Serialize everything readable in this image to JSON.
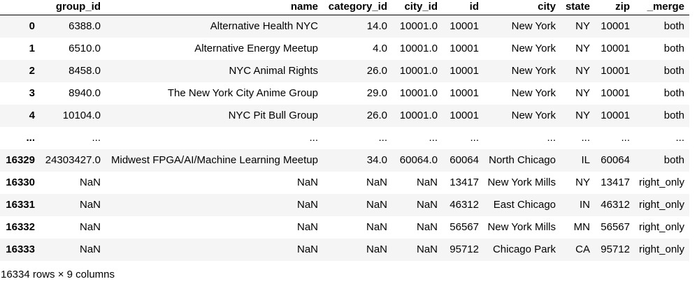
{
  "columns": [
    {
      "key": "index",
      "label": ""
    },
    {
      "key": "group_id",
      "label": "group_id"
    },
    {
      "key": "name",
      "label": "name"
    },
    {
      "key": "category_id",
      "label": "category_id"
    },
    {
      "key": "city_id",
      "label": "city_id"
    },
    {
      "key": "id",
      "label": "id"
    },
    {
      "key": "city",
      "label": "city"
    },
    {
      "key": "state",
      "label": "state"
    },
    {
      "key": "zip",
      "label": "zip"
    },
    {
      "key": "_merge",
      "label": "_merge"
    }
  ],
  "rows": [
    [
      "0",
      "6388.0",
      "Alternative Health NYC",
      "14.0",
      "10001.0",
      "10001",
      "New York",
      "NY",
      "10001",
      "both"
    ],
    [
      "1",
      "6510.0",
      "Alternative Energy Meetup",
      "4.0",
      "10001.0",
      "10001",
      "New York",
      "NY",
      "10001",
      "both"
    ],
    [
      "2",
      "8458.0",
      "NYC Animal Rights",
      "26.0",
      "10001.0",
      "10001",
      "New York",
      "NY",
      "10001",
      "both"
    ],
    [
      "3",
      "8940.0",
      "The New York City Anime Group",
      "29.0",
      "10001.0",
      "10001",
      "New York",
      "NY",
      "10001",
      "both"
    ],
    [
      "4",
      "10104.0",
      "NYC Pit Bull Group",
      "26.0",
      "10001.0",
      "10001",
      "New York",
      "NY",
      "10001",
      "both"
    ],
    [
      "...",
      "...",
      "...",
      "...",
      "...",
      "...",
      "...",
      "...",
      "...",
      "..."
    ],
    [
      "16329",
      "24303427.0",
      "Midwest FPGA/AI/Machine Learning Meetup",
      "34.0",
      "60064.0",
      "60064",
      "North Chicago",
      "IL",
      "60064",
      "both"
    ],
    [
      "16330",
      "NaN",
      "NaN",
      "NaN",
      "NaN",
      "13417",
      "New York Mills",
      "NY",
      "13417",
      "right_only"
    ],
    [
      "16331",
      "NaN",
      "NaN",
      "NaN",
      "NaN",
      "46312",
      "East Chicago",
      "IN",
      "46312",
      "right_only"
    ],
    [
      "16332",
      "NaN",
      "NaN",
      "NaN",
      "NaN",
      "56567",
      "New York Mills",
      "MN",
      "56567",
      "right_only"
    ],
    [
      "16333",
      "NaN",
      "NaN",
      "NaN",
      "NaN",
      "95712",
      "Chicago Park",
      "CA",
      "95712",
      "right_only"
    ]
  ],
  "footer": "16334 rows × 9 columns",
  "colors": {
    "stripe": "#f5f5f5",
    "background": "#ffffff",
    "header_rule": "#000000"
  }
}
